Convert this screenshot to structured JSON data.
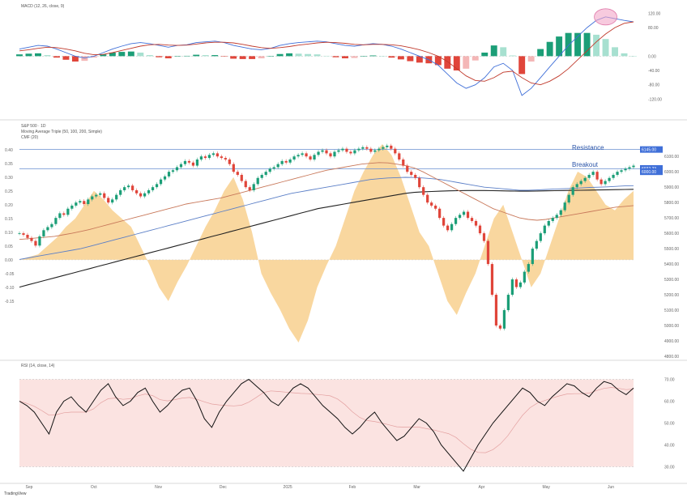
{
  "headers": {
    "macd": "MACD (12, 26, close, 9)",
    "main_line1": "S&P 500 · 1D",
    "main_line2": "Moving Average Triple (50, 100, 200, Simple)",
    "main_line3": "CMF (20)",
    "rsi": "RSI (14, close, 14)"
  },
  "annotations": {
    "resistance": "Resistance",
    "breakout": "Breakout"
  },
  "footer": "TradingView",
  "colors": {
    "macd_line": "#3f6fd8",
    "signal_line": "#c0392b",
    "hist_pos_strong": "#1b9e77",
    "hist_pos_weak": "#a7e0d0",
    "hist_neg_strong": "#e0453a",
    "hist_neg_weak": "#f4b6b6",
    "candle_up": "#1b9e77",
    "candle_down": "#e0453a",
    "ma50": "#c8785a",
    "ma100": "#5b7fc7",
    "ma200": "#222222",
    "cmf_fill": "#f7c97f",
    "rsi_line": "#111111",
    "rsi_band": "#fbe3e1",
    "resistance": "#6a8fd0"
  },
  "chart_data": [
    {
      "type": "bar",
      "name": "MACD panel",
      "ylim": [
        -160,
        130
      ],
      "y_ticks": [
        "120.00",
        "80.00",
        "0.00",
        "-40.00",
        "-80.00",
        "-120.00"
      ],
      "macd": [
        20,
        25,
        30,
        28,
        20,
        10,
        0,
        -5,
        0,
        10,
        20,
        28,
        35,
        38,
        35,
        30,
        25,
        30,
        32,
        38,
        40,
        42,
        38,
        30,
        25,
        20,
        18,
        22,
        30,
        35,
        38,
        40,
        42,
        40,
        35,
        30,
        28,
        32,
        35,
        33,
        28,
        20,
        10,
        0,
        -10,
        -25,
        -50,
        -75,
        -90,
        -80,
        -60,
        -30,
        -20,
        -40,
        -110,
        -90,
        -60,
        -30,
        0,
        30,
        55,
        80,
        100,
        110,
        105,
        100,
        96
      ],
      "signal": [
        15,
        18,
        22,
        25,
        24,
        20,
        15,
        8,
        4,
        5,
        10,
        16,
        22,
        28,
        32,
        33,
        31,
        30,
        31,
        34,
        37,
        39,
        39,
        37,
        33,
        28,
        24,
        22,
        24,
        27,
        31,
        34,
        37,
        39,
        38,
        36,
        33,
        32,
        33,
        33,
        32,
        29,
        24,
        18,
        10,
        0,
        -15,
        -35,
        -55,
        -68,
        -70,
        -60,
        -45,
        -42,
        -60,
        -75,
        -80,
        -70,
        -55,
        -35,
        -10,
        15,
        40,
        62,
        80,
        92,
        96
      ],
      "histogram_note": "hist = macd - signal"
    },
    {
      "type": "line",
      "name": "S&P 500 price",
      "ylim": [
        4800,
        6180
      ],
      "y_ticks": [
        "6100.00",
        "6000.00",
        "5900.00",
        "5800.00",
        "5700.00",
        "5600.00",
        "5500.00",
        "5400.00",
        "5300.00",
        "5200.00",
        "5100.00",
        "5000.00",
        "4900.00",
        "4800.00"
      ],
      "resistance": 6145,
      "breakout_level": 6020,
      "price_labels": [
        "6145.00",
        "6022.23",
        "6000.00"
      ],
      "closes": [
        5600,
        5590,
        5570,
        5550,
        5520,
        5580,
        5620,
        5640,
        5660,
        5700,
        5730,
        5720,
        5760,
        5780,
        5800,
        5810,
        5790,
        5820,
        5840,
        5850,
        5860,
        5830,
        5800,
        5820,
        5850,
        5880,
        5900,
        5910,
        5880,
        5860,
        5840,
        5860,
        5880,
        5900,
        5920,
        5950,
        5970,
        6000,
        6010,
        6030,
        6050,
        6070,
        6060,
        6040,
        6080,
        6100,
        6090,
        6110,
        6120,
        6100,
        6090,
        6080,
        6050,
        6000,
        5980,
        5940,
        5900,
        5880,
        5920,
        5960,
        5980,
        6000,
        6020,
        6030,
        6050,
        6070,
        6060,
        6080,
        6100,
        6110,
        6120,
        6100,
        6080,
        6110,
        6130,
        6140,
        6120,
        6100,
        6130,
        6140,
        6150,
        6130,
        6120,
        6140,
        6150,
        6160,
        6150,
        6130,
        6140,
        6150,
        6160,
        6170,
        6150,
        6120,
        6080,
        6040,
        6000,
        5980,
        5960,
        5900,
        5850,
        5800,
        5780,
        5760,
        5700,
        5650,
        5620,
        5660,
        5700,
        5720,
        5740,
        5700,
        5680,
        5650,
        5600,
        5550,
        5400,
        5200,
        5000,
        4980,
        5100,
        5200,
        5300,
        5250,
        5280,
        5350,
        5400,
        5500,
        5550,
        5600,
        5650,
        5680,
        5700,
        5720,
        5750,
        5800,
        5850,
        5900,
        5920,
        5940,
        5960,
        5980,
        6000,
        5950,
        5920,
        5940,
        5960,
        5980,
        6000,
        6010,
        6020,
        6030,
        6040
      ],
      "ma50": [
        5560,
        5565,
        5570,
        5575,
        5580,
        5590,
        5600,
        5612,
        5625,
        5640,
        5655,
        5670,
        5685,
        5700,
        5715,
        5730,
        5745,
        5760,
        5775,
        5790,
        5800,
        5810,
        5820,
        5830,
        5845,
        5860,
        5875,
        5890,
        5905,
        5920,
        5935,
        5950,
        5965,
        5980,
        5995,
        6010,
        6020,
        6030,
        6040,
        6050,
        6055,
        6060,
        6058,
        6050,
        6040,
        6025,
        6000,
        5970,
        5940,
        5910,
        5880,
        5850,
        5820,
        5790,
        5760,
        5740,
        5720,
        5700,
        5690,
        5685,
        5690,
        5700,
        5710,
        5720,
        5730,
        5740,
        5750,
        5760,
        5770,
        5775,
        5780
      ],
      "ma100": [
        5430,
        5440,
        5450,
        5460,
        5470,
        5480,
        5490,
        5500,
        5515,
        5530,
        5545,
        5560,
        5575,
        5590,
        5605,
        5620,
        5635,
        5650,
        5665,
        5680,
        5695,
        5710,
        5725,
        5740,
        5755,
        5770,
        5785,
        5800,
        5815,
        5830,
        5845,
        5860,
        5870,
        5880,
        5890,
        5900,
        5910,
        5920,
        5930,
        5940,
        5950,
        5955,
        5960,
        5962,
        5964,
        5963,
        5960,
        5955,
        5950,
        5940,
        5930,
        5920,
        5910,
        5900,
        5895,
        5890,
        5885,
        5880,
        5880,
        5882,
        5885,
        5888,
        5890,
        5892,
        5895,
        5898,
        5900,
        5902,
        5905,
        5908,
        5910
      ],
      "ma200": [
        5250,
        5265,
        5280,
        5295,
        5310,
        5325,
        5340,
        5355,
        5370,
        5385,
        5400,
        5415,
        5430,
        5445,
        5460,
        5475,
        5490,
        5505,
        5520,
        5535,
        5550,
        5565,
        5580,
        5595,
        5610,
        5625,
        5640,
        5655,
        5670,
        5685,
        5700,
        5715,
        5730,
        5745,
        5760,
        5770,
        5780,
        5790,
        5800,
        5810,
        5820,
        5830,
        5840,
        5850,
        5860,
        5866,
        5870,
        5872,
        5874,
        5876,
        5877,
        5878,
        5878,
        5878,
        5877,
        5876,
        5875,
        5874,
        5874,
        5875,
        5876,
        5877,
        5878,
        5879,
        5880,
        5881,
        5882,
        5883,
        5884,
        5885,
        5886
      ]
    },
    {
      "type": "area",
      "name": "CMF (20)",
      "ylim": [
        -0.35,
        0.42
      ],
      "y_ticks": [
        "0.40",
        "0.35",
        "0.30",
        "0.25",
        "0.20",
        "0.15",
        "0.10",
        "0.05",
        "0.00",
        "-0.05",
        "-0.10",
        "-0.15"
      ],
      "values": [
        0.0,
        0.01,
        0.02,
        0.05,
        0.08,
        0.12,
        0.15,
        0.2,
        0.25,
        0.22,
        0.18,
        0.15,
        0.12,
        0.05,
        -0.02,
        -0.1,
        -0.15,
        -0.08,
        -0.02,
        0.05,
        0.12,
        0.18,
        0.25,
        0.3,
        0.22,
        0.1,
        -0.05,
        -0.12,
        -0.18,
        -0.25,
        -0.3,
        -0.22,
        -0.1,
        -0.02,
        0.05,
        0.15,
        0.25,
        0.32,
        0.38,
        0.42,
        0.38,
        0.3,
        0.2,
        0.1,
        0.05,
        -0.05,
        -0.15,
        -0.2,
        -0.12,
        -0.05,
        0.05,
        0.15,
        0.2,
        0.1,
        0.0,
        -0.1,
        -0.05,
        0.05,
        0.15,
        0.25,
        0.32,
        0.3,
        0.25,
        0.2,
        0.18,
        0.22,
        0.25
      ]
    },
    {
      "type": "line",
      "name": "RSI (14)",
      "ylim": [
        25,
        75
      ],
      "y_ticks": [
        "70.00",
        "60.00",
        "50.00",
        "40.00",
        "30.00"
      ],
      "band": [
        30,
        70
      ],
      "rsi": [
        60,
        58,
        55,
        50,
        45,
        55,
        60,
        62,
        58,
        55,
        60,
        65,
        68,
        62,
        58,
        60,
        64,
        66,
        60,
        55,
        58,
        62,
        65,
        66,
        60,
        52,
        48,
        55,
        60,
        64,
        68,
        70,
        67,
        64,
        60,
        58,
        62,
        66,
        68,
        66,
        62,
        58,
        55,
        52,
        48,
        45,
        48,
        52,
        55,
        50,
        46,
        42,
        44,
        48,
        52,
        50,
        46,
        40,
        36,
        32,
        28,
        34,
        40,
        45,
        50,
        54,
        58,
        62,
        66,
        64,
        60,
        58,
        62,
        65,
        68,
        67,
        64,
        62,
        66,
        69,
        68,
        65,
        63,
        66
      ]
    }
  ],
  "x_ticks": [
    "Sep",
    "Oct",
    "Nov",
    "Dec",
    "2025",
    "Feb",
    "Mar",
    "Apr",
    "May",
    "Jun"
  ]
}
